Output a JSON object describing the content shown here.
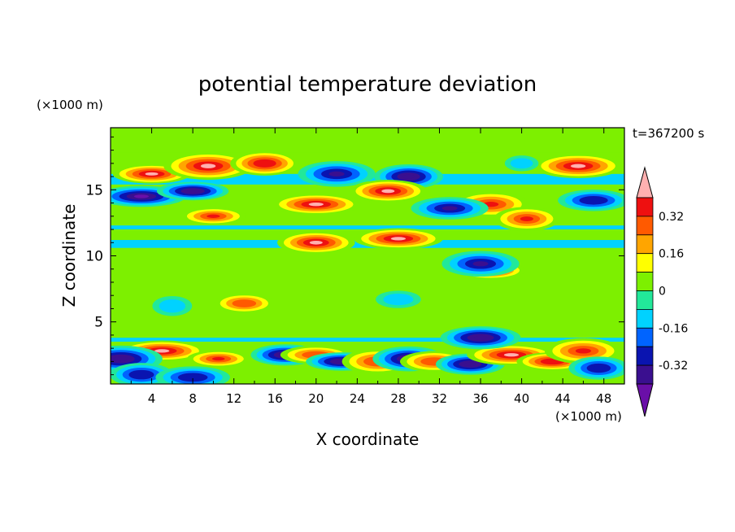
{
  "chart_data": {
    "type": "heatmap",
    "title": "potential temperature deviation",
    "xlabel": "X coordinate",
    "ylabel": "Z coordinate",
    "x_unit": "(×1000 m)",
    "y_unit": "(×1000 m)",
    "time_label": "t=367200 s",
    "xlim": [
      0,
      50
    ],
    "ylim": [
      0.3,
      19.7
    ],
    "x_ticks": [
      4,
      8,
      12,
      16,
      20,
      24,
      28,
      32,
      36,
      40,
      44,
      48
    ],
    "x_tick_labels": [
      "4",
      "8",
      "12",
      "16",
      "20",
      "24",
      "28",
      "32",
      "36",
      "40",
      "44",
      "48"
    ],
    "y_ticks": [
      5,
      10,
      15
    ],
    "y_tick_labels": [
      "5",
      "10",
      "15"
    ],
    "colorbar": {
      "levels": [
        -0.4,
        -0.32,
        -0.24,
        -0.16,
        -0.08,
        0,
        0.08,
        0.16,
        0.24,
        0.32,
        0.4
      ],
      "tick_labels": [
        "0.32",
        "0.16",
        "0",
        "-0.16",
        "-0.32"
      ],
      "tick_values": [
        0.32,
        0.16,
        0,
        -0.16,
        -0.32
      ],
      "colors": [
        "#6a0fa8",
        "#3a0f8f",
        "#0a14b0",
        "#0064ff",
        "#00d2ff",
        "#22e89a",
        "#7df000",
        "#ffff00",
        "#ffa500",
        "#ff5a00",
        "#ee1010",
        "#ffb0b0"
      ]
    },
    "features": [
      {
        "x": 4.0,
        "z": 16.2,
        "value": 0.42
      },
      {
        "x": 9.5,
        "z": 16.8,
        "value": 0.42
      },
      {
        "x": 15.0,
        "z": 17.0,
        "value": 0.36
      },
      {
        "x": 45.5,
        "z": 16.8,
        "value": 0.42
      },
      {
        "x": 40.0,
        "z": 17.0,
        "value": -0.12
      },
      {
        "x": 3.0,
        "z": 14.5,
        "value": -0.42
      },
      {
        "x": 8.0,
        "z": 14.9,
        "value": -0.38
      },
      {
        "x": 22.0,
        "z": 16.2,
        "value": -0.34
      },
      {
        "x": 29.0,
        "z": 16.0,
        "value": -0.36
      },
      {
        "x": 47.0,
        "z": 14.2,
        "value": -0.3
      },
      {
        "x": 27.0,
        "z": 14.9,
        "value": 0.42
      },
      {
        "x": 20.0,
        "z": 13.9,
        "value": 0.42
      },
      {
        "x": 10.0,
        "z": 13.0,
        "value": 0.34
      },
      {
        "x": 37.0,
        "z": 13.9,
        "value": 0.34
      },
      {
        "x": 40.5,
        "z": 12.8,
        "value": 0.34
      },
      {
        "x": 33.0,
        "z": 13.6,
        "value": -0.34
      },
      {
        "x": 20.0,
        "z": 11.0,
        "value": 0.42
      },
      {
        "x": 28.0,
        "z": 11.3,
        "value": 0.42
      },
      {
        "x": 37.0,
        "z": 8.9,
        "value": 0.36
      },
      {
        "x": 36.0,
        "z": 9.4,
        "value": -0.34
      },
      {
        "x": 6.0,
        "z": 6.2,
        "value": -0.16
      },
      {
        "x": 28.0,
        "z": 6.7,
        "value": -0.12
      },
      {
        "x": 13.0,
        "z": 6.4,
        "value": 0.3
      },
      {
        "x": 5.0,
        "z": 2.8,
        "value": 0.42
      },
      {
        "x": 10.5,
        "z": 2.2,
        "value": 0.32
      },
      {
        "x": 1.0,
        "z": 2.2,
        "value": -0.38
      },
      {
        "x": 3.0,
        "z": 1.0,
        "value": -0.32
      },
      {
        "x": 8.0,
        "z": 0.8,
        "value": -0.32
      },
      {
        "x": 17.0,
        "z": 2.5,
        "value": -0.36
      },
      {
        "x": 20.0,
        "z": 2.5,
        "value": 0.3
      },
      {
        "x": 22.5,
        "z": 2.0,
        "value": -0.38
      },
      {
        "x": 26.0,
        "z": 2.0,
        "value": 0.3
      },
      {
        "x": 29.0,
        "z": 2.2,
        "value": -0.38
      },
      {
        "x": 31.5,
        "z": 2.0,
        "value": 0.28
      },
      {
        "x": 35.0,
        "z": 1.8,
        "value": -0.36
      },
      {
        "x": 39.0,
        "z": 2.5,
        "value": 0.42
      },
      {
        "x": 43.0,
        "z": 2.0,
        "value": 0.38
      },
      {
        "x": 46.0,
        "z": 2.8,
        "value": 0.34
      },
      {
        "x": 47.5,
        "z": 1.5,
        "value": -0.3
      },
      {
        "x": 36.0,
        "z": 3.8,
        "value": -0.36
      }
    ]
  }
}
